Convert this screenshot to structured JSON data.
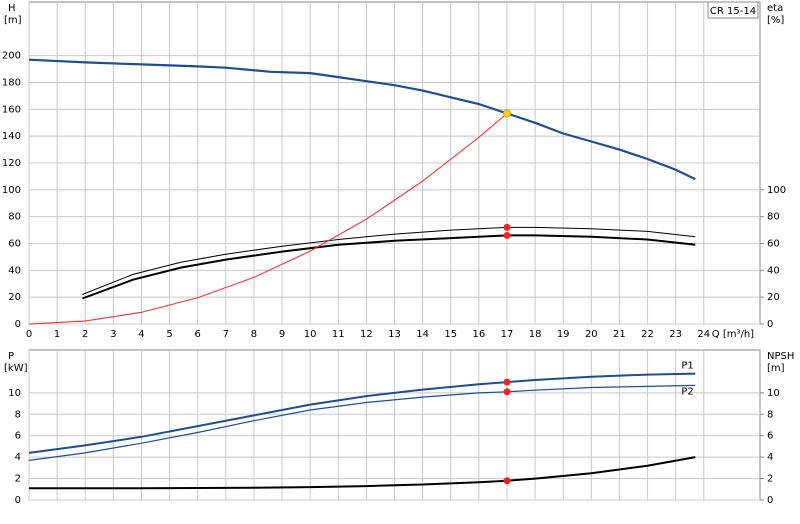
{
  "chart_data": [
    {
      "type": "line",
      "title": "CR 15-14",
      "ylabel": "H",
      "yunit": "[m]",
      "y2label": "eta",
      "y2unit": "[%]",
      "xlabel": "Q [m³/h]",
      "xlim": [
        0,
        26
      ],
      "xticks": [
        0,
        1,
        2,
        3,
        4,
        5,
        6,
        7,
        8,
        9,
        10,
        11,
        12,
        13,
        14,
        15,
        16,
        17,
        18,
        19,
        20,
        21,
        22,
        23,
        24
      ],
      "ylim": [
        0,
        240
      ],
      "yticks": [
        0,
        20,
        40,
        60,
        80,
        100,
        120,
        140,
        160,
        180,
        200
      ],
      "y2lim": [
        0,
        240
      ],
      "y2ticks": [
        0,
        20,
        40,
        60,
        80,
        100
      ],
      "grid": true,
      "show_xtick_labels": true,
      "series": [
        {
          "color": "#1f4e8c",
          "linewidth": 2.2,
          "x": [
            0,
            2,
            4,
            6,
            7,
            8.6,
            10,
            11,
            12,
            13,
            14,
            15,
            16,
            17,
            18,
            19,
            20,
            21,
            22,
            23,
            23.7
          ],
          "values": [
            197,
            195,
            193.5,
            192,
            191,
            188,
            187,
            184,
            181,
            178,
            174,
            169,
            164,
            157,
            150,
            142,
            136,
            130,
            123,
            115,
            108
          ]
        },
        {
          "color": "#000000",
          "linewidth": 1,
          "axis": "y2",
          "x": [
            1.9,
            3.7,
            5.4,
            7,
            9,
            11,
            13,
            15,
            17,
            18,
            20,
            22,
            23.7
          ],
          "values": [
            22,
            37,
            46,
            52,
            58,
            63,
            67,
            70,
            72,
            72,
            71,
            69,
            65
          ]
        },
        {
          "color": "#000000",
          "linewidth": 2,
          "axis": "y2",
          "x": [
            1.9,
            3.7,
            5.4,
            7,
            9,
            11,
            13,
            15,
            17,
            18,
            20,
            22,
            23.7
          ],
          "values": [
            19,
            33,
            42,
            48,
            54,
            59,
            62,
            64,
            66,
            66,
            65,
            63,
            59
          ]
        },
        {
          "color": "#ff2020",
          "linewidth": 1,
          "x": [
            0,
            2,
            4,
            6,
            8,
            10,
            12,
            14,
            16,
            17
          ],
          "values": [
            0,
            2.2,
            8.7,
            19.6,
            34.8,
            54.3,
            78.2,
            106.5,
            139.1,
            157
          ]
        }
      ],
      "points": [
        {
          "x": 17,
          "y": 157,
          "color": "#ffd700"
        },
        {
          "x": 17,
          "y": 72,
          "color": "#ff2020",
          "axis": "y2"
        },
        {
          "x": 17,
          "y": 66,
          "color": "#ff2020",
          "axis": "y2"
        }
      ]
    },
    {
      "type": "line",
      "ylabel": "P",
      "yunit": "[kW]",
      "y2label": "NPSH",
      "y2unit": "[m]",
      "xlim": [
        0,
        26
      ],
      "xticks": [
        0,
        1,
        2,
        3,
        4,
        5,
        6,
        7,
        8,
        9,
        10,
        11,
        12,
        13,
        14,
        15,
        16,
        17,
        18,
        19,
        20,
        21,
        22,
        23,
        24
      ],
      "ylim": [
        0,
        14
      ],
      "yticks": [
        0,
        2,
        4,
        6,
        8,
        10
      ],
      "y2lim": [
        0,
        14
      ],
      "y2ticks": [
        0,
        2,
        4,
        6,
        8,
        10
      ],
      "grid": true,
      "show_xtick_labels": false,
      "series": [
        {
          "name": "P1",
          "color": "#1f4e8c",
          "linewidth": 2,
          "x": [
            0,
            2,
            4,
            6,
            8,
            10,
            12,
            14,
            16,
            17,
            18,
            20,
            22,
            23.7
          ],
          "values": [
            4.4,
            5.1,
            5.9,
            6.9,
            7.9,
            8.9,
            9.7,
            10.3,
            10.8,
            11.0,
            11.2,
            11.5,
            11.7,
            11.8
          ]
        },
        {
          "name": "P2",
          "color": "#1f4e8c",
          "linewidth": 1.2,
          "x": [
            0,
            2,
            4,
            6,
            8,
            10,
            12,
            14,
            16,
            17,
            18,
            20,
            22,
            23.7
          ],
          "values": [
            3.7,
            4.4,
            5.3,
            6.3,
            7.4,
            8.4,
            9.1,
            9.6,
            10.0,
            10.1,
            10.25,
            10.5,
            10.6,
            10.7
          ]
        },
        {
          "color": "#000000",
          "linewidth": 2,
          "axis": "y2",
          "x": [
            0,
            4,
            8,
            10,
            12,
            14,
            16,
            17,
            18,
            20,
            22,
            23.7
          ],
          "values": [
            1.1,
            1.1,
            1.15,
            1.2,
            1.3,
            1.45,
            1.65,
            1.8,
            2.0,
            2.5,
            3.2,
            4.0
          ]
        }
      ],
      "points": [
        {
          "x": 17,
          "y": 11.0,
          "color": "#ff2020"
        },
        {
          "x": 17,
          "y": 10.1,
          "color": "#ff2020"
        },
        {
          "x": 17,
          "y": 1.8,
          "color": "#ff2020",
          "axis": "y2"
        }
      ]
    }
  ]
}
